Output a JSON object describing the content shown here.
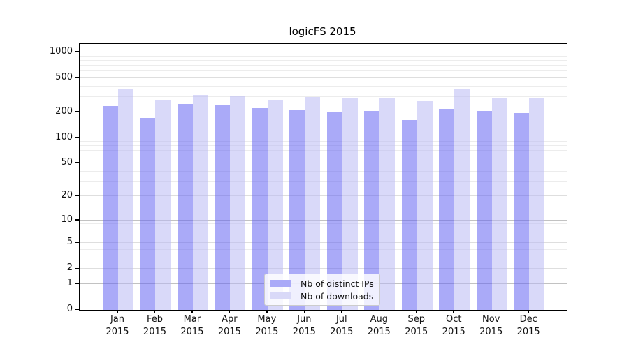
{
  "title": "logicFS 2015",
  "chart_data": {
    "type": "bar",
    "title": "logicFS 2015",
    "categories": [
      "Jan 2015",
      "Feb 2015",
      "Mar 2015",
      "Apr 2015",
      "May 2015",
      "Jun 2015",
      "Jul 2015",
      "Aug 2015",
      "Sep 2015",
      "Oct 2015",
      "Nov 2015",
      "Dec 2015"
    ],
    "series": [
      {
        "name": "Nb of distinct IPs",
        "color": "rgba(100,100,242,0.55)",
        "solid_color": "#aaaaf8",
        "values": [
          237,
          171,
          248,
          245,
          222,
          216,
          199,
          208,
          162,
          219,
          206,
          196
        ]
      },
      {
        "name": "Nb of downloads",
        "color": "rgba(186,186,244,0.55)",
        "solid_color": "#d9d9f8",
        "values": [
          373,
          281,
          319,
          315,
          281,
          303,
          290,
          295,
          269,
          378,
          290,
          298
        ]
      }
    ],
    "yscale": "log1p",
    "ylim": [
      0,
      1250
    ],
    "y_ticks": [
      1000,
      500,
      200,
      100,
      50,
      20,
      10,
      5,
      2,
      1,
      0
    ],
    "y_major_gridlines": [
      1,
      10,
      100,
      1000
    ],
    "y_minor_gridlines": [
      3,
      4,
      6,
      7,
      8,
      9,
      30,
      40,
      60,
      70,
      80,
      90,
      300,
      400,
      600,
      700,
      800,
      900
    ],
    "xlabel": "",
    "ylabel": "",
    "grid": true,
    "legend_position": "lower center"
  },
  "legend": {
    "entries": [
      {
        "label": "Nb of distinct IPs"
      },
      {
        "label": "Nb of downloads"
      }
    ]
  }
}
